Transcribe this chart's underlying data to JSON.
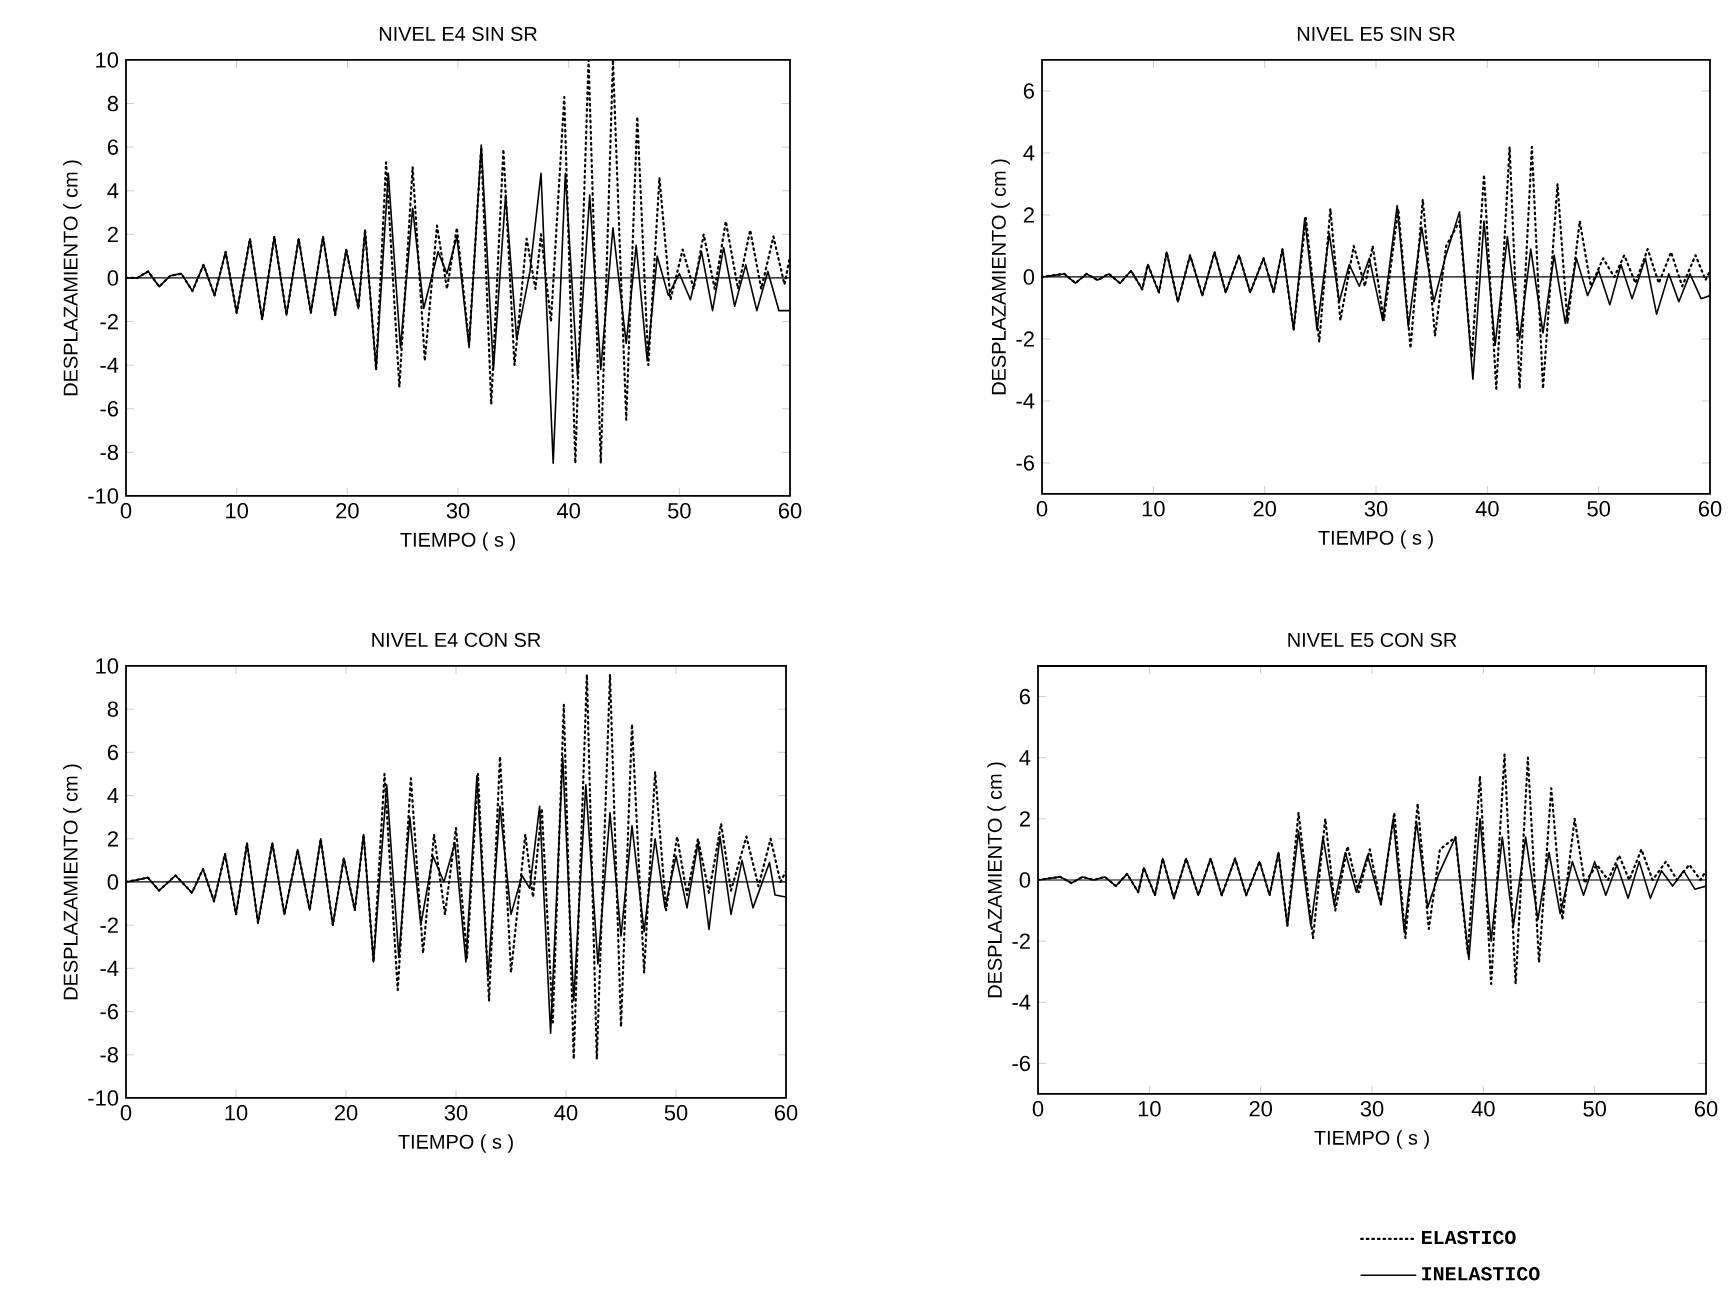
{
  "chart_data": [
    {
      "type": "line",
      "title": "NIVEL E4 SIN SR",
      "xlabel": "TIEMPO   ( s )",
      "ylabel": "DESPLAZAMIENTO   ( cm )",
      "xlim": [
        0,
        60
      ],
      "ylim": [
        -10,
        10
      ],
      "xticks": [
        0,
        10,
        20,
        30,
        40,
        50,
        60
      ],
      "yticks": [
        -10,
        -8,
        -6,
        -4,
        -2,
        0,
        2,
        4,
        6,
        8,
        10
      ],
      "legend": false,
      "ref_lines": [
        {
          "axis": "y",
          "value": 0
        }
      ],
      "series": [
        {
          "color": "#000000",
          "line_style": "dotted",
          "x": [
            0,
            1,
            2,
            3,
            4,
            5,
            6,
            7,
            8,
            9,
            10,
            11.2,
            12.3,
            13.4,
            14.5,
            15.6,
            16.7,
            17.8,
            18.9,
            19.9,
            21,
            21.6,
            22.6,
            23.5,
            24.7,
            25.9,
            27,
            28.1,
            29,
            29.9,
            31,
            32.1,
            33,
            34.1,
            35.1,
            36.2,
            37,
            37.5,
            38.4,
            39.6,
            40.6,
            41.8,
            42.9,
            44,
            45.2,
            46.2,
            47.2,
            48.2,
            49.2,
            50.3,
            51.3,
            52.2,
            53.2,
            54.2,
            55.3,
            56.4,
            57.4,
            58.5,
            59.5,
            60
          ],
          "values": [
            0,
            0,
            0.3,
            -0.4,
            0.1,
            0.2,
            -0.6,
            0.6,
            -0.8,
            1.2,
            -1.6,
            1.8,
            -1.9,
            1.9,
            -1.7,
            1.8,
            -1.6,
            1.9,
            -1.7,
            1.3,
            -1.4,
            2.2,
            -4.2,
            5.3,
            -5,
            5.1,
            -3.8,
            2.4,
            -0.5,
            2.3,
            -3,
            6,
            -5.8,
            5.9,
            -4,
            1.8,
            -0.5,
            2,
            -2,
            8.3,
            -8.5,
            10,
            -8.5,
            10,
            -6.5,
            7.4,
            -4,
            4.6,
            -1,
            1.3,
            -0.5,
            2,
            -0.5,
            2.6,
            -0.5,
            2.2,
            -0.5,
            1.9,
            -0.3,
            1
          ]
        },
        {
          "color": "#000000",
          "line_style": "solid",
          "x": [
            0,
            1,
            2,
            3,
            4,
            5,
            6,
            7,
            8,
            9,
            10,
            11.2,
            12.3,
            13.4,
            14.5,
            15.6,
            16.7,
            17.8,
            18.9,
            19.9,
            21,
            21.6,
            22.6,
            23.7,
            24.8,
            25.9,
            26.9,
            28.2,
            29,
            29.9,
            31,
            32.1,
            33.2,
            34.3,
            35.3,
            36.5,
            37.5,
            38.6,
            39.7,
            40.8,
            41.9,
            42.9,
            44,
            45.2,
            46.1,
            47.1,
            48,
            49,
            50,
            51,
            52,
            53,
            54,
            55,
            56,
            57,
            58,
            59,
            60
          ],
          "values": [
            0,
            0,
            0.3,
            -0.4,
            0.1,
            0.2,
            -0.6,
            0.6,
            -0.8,
            1.2,
            -1.6,
            1.8,
            -1.9,
            1.9,
            -1.7,
            1.8,
            -1.6,
            1.9,
            -1.7,
            1.3,
            -1.4,
            2.2,
            -4.2,
            4.8,
            -3.2,
            3.2,
            -1.4,
            1.2,
            0.2,
            1.9,
            -3.2,
            6.1,
            -4.2,
            3.8,
            -2.8,
            0.3,
            4.8,
            -8.5,
            4.8,
            -4.5,
            3.8,
            -4.2,
            2.3,
            -3,
            1.5,
            -3.8,
            1,
            -0.8,
            0.2,
            -1,
            1.2,
            -1.5,
            1.4,
            -1.3,
            0.6,
            -1.5,
            0.3,
            -1.5,
            -1.5
          ]
        }
      ]
    },
    {
      "type": "line",
      "title": "NIVEL E5 SIN SR",
      "xlabel": "TIEMPO   ( s )",
      "ylabel": "DESPLAZAMIENTO   ( cm )",
      "xlim": [
        0,
        60
      ],
      "ylim": [
        -7,
        7
      ],
      "xticks": [
        0,
        10,
        20,
        30,
        40,
        50,
        60
      ],
      "yticks": [
        -6,
        -4,
        -2,
        0,
        2,
        4,
        6
      ],
      "legend": false,
      "ref_lines": [
        {
          "axis": "y",
          "value": 0
        }
      ],
      "series": [
        {
          "color": "#000000",
          "line_style": "dotted",
          "x": [
            0,
            2,
            3,
            4,
            5,
            6,
            7,
            8,
            9,
            9.5,
            10.5,
            11.2,
            12.2,
            13.3,
            14.4,
            15.5,
            16.5,
            17.7,
            18.7,
            19.9,
            20.8,
            21.6,
            22.6,
            23.7,
            24.9,
            25.9,
            26.8,
            28,
            29,
            29.7,
            30.7,
            32,
            33.1,
            34.2,
            35.3,
            36.3,
            37.5,
            38.6,
            39.7,
            40.8,
            42,
            42.9,
            44,
            45,
            46.3,
            47.2,
            48.3,
            49.3,
            50.4,
            51.4,
            52.3,
            53.3,
            54.4,
            55.4,
            56.5,
            57.5,
            58.7,
            59.6,
            60
          ],
          "values": [
            0,
            0.1,
            -0.2,
            0.1,
            -0.1,
            0.1,
            -0.2,
            0.2,
            -0.4,
            0.4,
            -0.5,
            0.8,
            -0.8,
            0.7,
            -0.6,
            0.8,
            -0.5,
            0.7,
            -0.5,
            0.6,
            -0.5,
            0.9,
            -1.7,
            1.9,
            -2.1,
            2.2,
            -1.4,
            1,
            -0.3,
            1,
            -1.4,
            2.2,
            -2.3,
            2.5,
            -1.9,
            1,
            1.8,
            -2.6,
            3.3,
            -3.6,
            4.2,
            -3.6,
            4.2,
            -3.6,
            3,
            -1.5,
            1.8,
            -0.3,
            0.6,
            0,
            0.7,
            -0.2,
            0.9,
            -0.2,
            0.8,
            -0.3,
            0.7,
            -0.1,
            0.2
          ]
        },
        {
          "color": "#000000",
          "line_style": "solid",
          "x": [
            0,
            2,
            3,
            4,
            5,
            6,
            7,
            8,
            9,
            9.5,
            10.5,
            11.2,
            12.2,
            13.3,
            14.4,
            15.5,
            16.5,
            17.7,
            18.7,
            19.9,
            20.8,
            21.6,
            22.6,
            23.6,
            24.7,
            25.8,
            26.7,
            27.6,
            28.5,
            29.4,
            30.6,
            31.9,
            32.9,
            34.1,
            35.2,
            36.2,
            37.5,
            38.7,
            39.7,
            40.7,
            41.8,
            42.9,
            43.9,
            45,
            46,
            47,
            48,
            49,
            50,
            51,
            52,
            53,
            54.2,
            55.2,
            56.3,
            57.2,
            58.2,
            59.2,
            60
          ],
          "values": [
            0,
            0.1,
            -0.2,
            0.1,
            -0.1,
            0.1,
            -0.2,
            0.2,
            -0.4,
            0.4,
            -0.5,
            0.8,
            -0.8,
            0.7,
            -0.6,
            0.8,
            -0.5,
            0.7,
            -0.5,
            0.6,
            -0.5,
            0.9,
            -1.7,
            1.9,
            -1.7,
            1.4,
            -0.8,
            0.4,
            -0.3,
            0.6,
            -1.4,
            2.3,
            -1.6,
            1.6,
            -0.8,
            0.6,
            2.1,
            -3.3,
            1.8,
            -2.2,
            1.3,
            -2,
            0.9,
            -1.8,
            0.7,
            -1.5,
            0.6,
            -0.6,
            0.2,
            -0.9,
            0.4,
            -0.7,
            0.6,
            -1.2,
            0.1,
            -0.8,
            0.1,
            -0.7,
            -0.6
          ]
        }
      ]
    },
    {
      "type": "line",
      "title": "NIVEL E4 CON SR",
      "xlabel": "TIEMPO   ( s )",
      "ylabel": "DESPLAZAMIENTO   ( cm )",
      "xlim": [
        0,
        60
      ],
      "ylim": [
        -10,
        10
      ],
      "xticks": [
        0,
        10,
        20,
        30,
        40,
        50,
        60
      ],
      "yticks": [
        -10,
        -8,
        -6,
        -4,
        -2,
        0,
        2,
        4,
        6,
        8,
        10
      ],
      "legend": false,
      "ref_lines": [
        {
          "axis": "y",
          "value": 0
        }
      ],
      "series": [
        {
          "color": "#000000",
          "line_style": "dotted",
          "x": [
            0,
            2,
            3,
            4.5,
            6,
            7,
            8,
            9,
            10,
            11,
            12,
            13.3,
            14.4,
            15.6,
            16.7,
            17.7,
            18.8,
            19.8,
            20.8,
            21.6,
            22.5,
            23.5,
            24.7,
            25.9,
            27,
            28,
            29,
            30,
            31,
            32,
            33,
            34,
            35,
            36.3,
            37,
            37.8,
            38.8,
            39.8,
            40.7,
            41.9,
            42.8,
            44,
            45,
            46,
            47.1,
            48.1,
            49.1,
            50.1,
            51,
            52,
            53,
            54.1,
            55,
            56.4,
            57.5,
            58.6,
            59.5,
            60
          ],
          "values": [
            0,
            0.2,
            -0.4,
            0.3,
            -0.5,
            0.6,
            -0.9,
            1.3,
            -1.5,
            1.8,
            -1.9,
            1.8,
            -1.5,
            1.5,
            -1.3,
            2,
            -2,
            1.1,
            -1.3,
            2.2,
            -3.7,
            5,
            -5,
            4.8,
            -3.3,
            2.2,
            -1.5,
            2.5,
            -3.5,
            5,
            -5.5,
            5.8,
            -4.2,
            2.2,
            -0.7,
            3.4,
            -6.5,
            8.2,
            -8.2,
            9.6,
            -8.2,
            9.6,
            -6.7,
            7.3,
            -4.2,
            5.1,
            -1.3,
            2.1,
            -0.6,
            2,
            -0.5,
            2.7,
            -0.4,
            2.1,
            -0.2,
            2,
            0,
            0.5
          ]
        },
        {
          "color": "#000000",
          "line_style": "solid",
          "x": [
            0,
            2,
            3,
            4.5,
            6,
            7,
            8,
            9,
            10,
            11,
            12,
            13.3,
            14.4,
            15.6,
            16.7,
            17.7,
            18.8,
            19.8,
            20.8,
            21.6,
            22.5,
            23.7,
            24.8,
            25.8,
            26.8,
            27.9,
            28.9,
            29.9,
            30.9,
            31.9,
            32.9,
            34,
            35,
            36,
            36.7,
            37.6,
            38.6,
            39.7,
            40.7,
            41.8,
            42.9,
            44,
            45,
            46,
            47.1,
            48.1,
            49,
            50,
            51,
            52,
            53,
            54,
            55,
            56,
            57,
            58.5,
            59,
            60
          ],
          "values": [
            0,
            0.2,
            -0.4,
            0.3,
            -0.5,
            0.6,
            -0.9,
            1.3,
            -1.5,
            1.8,
            -1.9,
            1.8,
            -1.5,
            1.5,
            -1.3,
            2,
            -2,
            1.1,
            -1.3,
            2.2,
            -3.7,
            4.5,
            -3.5,
            3,
            -2,
            1.2,
            0,
            1.8,
            -3.7,
            4.9,
            -4.4,
            3.5,
            -1.5,
            0.3,
            -0.3,
            3.5,
            -7,
            5.8,
            -5.5,
            4.5,
            -3.8,
            3.2,
            -2.5,
            2.6,
            -2.3,
            2,
            -1.2,
            1.2,
            -1.2,
            1.8,
            -2.2,
            2.1,
            -1.5,
            1,
            -1.2,
            0.9,
            -0.6,
            -0.7
          ]
        }
      ]
    },
    {
      "type": "line",
      "title": "NIVEL E5 CON SR",
      "xlabel": "TIEMPO   ( s )",
      "ylabel": "DESPLAZAMIENTO   ( cm )",
      "xlim": [
        0,
        60
      ],
      "ylim": [
        -7,
        7
      ],
      "xticks": [
        0,
        10,
        20,
        30,
        40,
        50,
        60
      ],
      "yticks": [
        -6,
        -4,
        -2,
        0,
        2,
        4,
        6
      ],
      "legend": "bottom",
      "ref_lines": [
        {
          "axis": "y",
          "value": 0
        }
      ],
      "series": [
        {
          "name": "ELASTICO",
          "color": "#000000",
          "line_style": "dotted",
          "x": [
            0,
            2,
            3,
            4,
            5,
            6,
            7,
            8,
            9,
            9.5,
            10.5,
            11.2,
            12.2,
            13.3,
            14.4,
            15.5,
            16.5,
            17.7,
            18.7,
            19.9,
            20.8,
            21.6,
            22.4,
            23.4,
            24.7,
            25.8,
            26.7,
            27.8,
            28.8,
            29.8,
            30.8,
            32,
            33,
            34.1,
            35.1,
            36.1,
            37.5,
            38.6,
            39.7,
            40.7,
            41.9,
            42.9,
            44,
            45,
            46.1,
            47.1,
            48.2,
            49.1,
            50.2,
            51.2,
            52.2,
            53.1,
            54.2,
            55.2,
            56.4,
            57.4,
            58.5,
            59.5,
            60
          ],
          "values": [
            0,
            0.1,
            -0.1,
            0.1,
            0,
            0.1,
            -0.2,
            0.2,
            -0.4,
            0.4,
            -0.5,
            0.7,
            -0.6,
            0.7,
            -0.5,
            0.7,
            -0.5,
            0.7,
            -0.5,
            0.6,
            -0.5,
            0.9,
            -1.5,
            2.2,
            -1.9,
            2,
            -1,
            1.1,
            -0.4,
            1,
            -0.8,
            2.2,
            -1.9,
            2.5,
            -1.6,
            1,
            1.4,
            -2.4,
            3.4,
            -3.4,
            4.1,
            -3.4,
            4,
            -2.7,
            3,
            -1.3,
            2,
            -0.1,
            0.5,
            0,
            0.8,
            0,
            1,
            0,
            0.6,
            0,
            0.5,
            0,
            0.3
          ]
        },
        {
          "name": "INELASTICO",
          "color": "#000000",
          "line_style": "solid",
          "x": [
            0,
            2,
            3,
            4,
            5,
            6,
            7,
            8,
            9,
            9.5,
            10.5,
            11.2,
            12.2,
            13.3,
            14.4,
            15.5,
            16.5,
            17.7,
            18.7,
            19.9,
            20.8,
            21.6,
            22.4,
            23.4,
            24.5,
            25.6,
            26.6,
            27.6,
            28.6,
            29.6,
            30.8,
            31.9,
            32.9,
            34,
            35,
            36,
            37.5,
            38.7,
            39.7,
            40.7,
            41.7,
            42.7,
            43.8,
            44.9,
            45.9,
            46.9,
            48,
            49,
            50,
            51,
            52,
            53,
            54,
            55,
            56,
            57,
            58,
            59,
            60
          ],
          "values": [
            0,
            0.1,
            -0.1,
            0.1,
            0,
            0.1,
            -0.2,
            0.2,
            -0.4,
            0.4,
            -0.5,
            0.7,
            -0.6,
            0.7,
            -0.5,
            0.7,
            -0.5,
            0.7,
            -0.5,
            0.6,
            -0.5,
            0.9,
            -1.5,
            1.6,
            -1.5,
            1.4,
            -0.8,
            0.9,
            -0.4,
            0.8,
            -0.8,
            2,
            -1.7,
            1.9,
            -0.9,
            0.2,
            1.4,
            -2.6,
            2,
            -2,
            1.4,
            -1.5,
            1.4,
            -1.3,
            0.9,
            -1.1,
            0.6,
            -0.5,
            0.6,
            -0.5,
            0.5,
            -0.6,
            0.6,
            -0.6,
            0.3,
            -0.2,
            0.3,
            -0.3,
            -0.2
          ]
        }
      ]
    }
  ]
}
